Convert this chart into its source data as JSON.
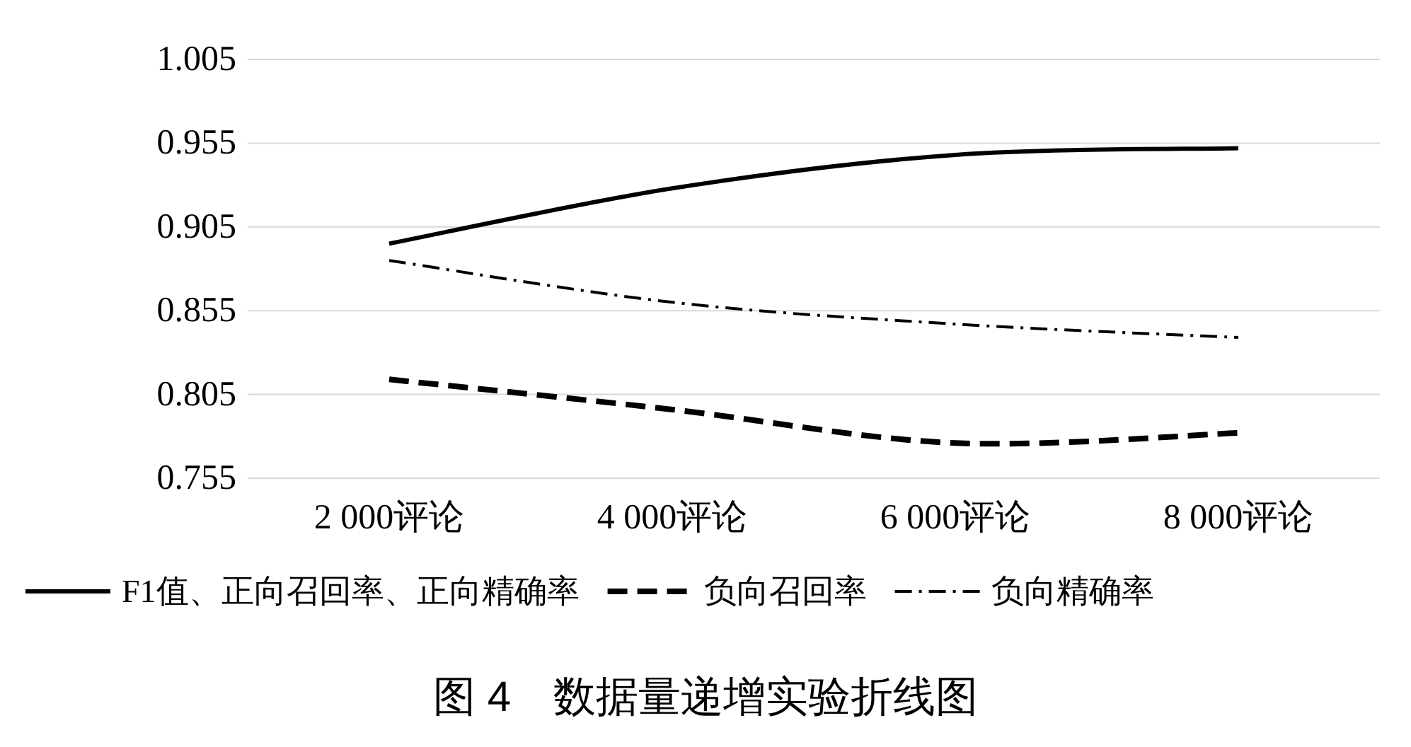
{
  "chart_data": {
    "type": "line",
    "title": "图 4　数据量递增实验折线图",
    "categories": [
      "2 000评论",
      "4 000评论",
      "6 000评论",
      "8 000评论"
    ],
    "series": [
      {
        "name": "F1值、正向召回率、正向精确率",
        "color": "#000000",
        "line_style": "solid",
        "values": [
          0.895,
          0.928,
          0.948,
          0.952
        ]
      },
      {
        "name": "负向召回率",
        "color": "#000000",
        "line_style": "dashed",
        "values": [
          0.814,
          0.796,
          0.776,
          0.782
        ]
      },
      {
        "name": "负向精确率",
        "color": "#000000",
        "line_style": "dashdot",
        "values": [
          0.885,
          0.86,
          0.847,
          0.839
        ]
      }
    ],
    "ylim": [
      0.755,
      1.005
    ],
    "yticks": [
      {
        "value": 0.755,
        "label": "0.755"
      },
      {
        "value": 0.805,
        "label": "0.805"
      },
      {
        "value": 0.855,
        "label": "0.855"
      },
      {
        "value": 0.905,
        "label": "0.905"
      },
      {
        "value": 0.955,
        "label": "0.955"
      },
      {
        "value": 1.005,
        "label": "1.005"
      }
    ],
    "grid": "y",
    "legend": "bottom",
    "marker": "none"
  }
}
